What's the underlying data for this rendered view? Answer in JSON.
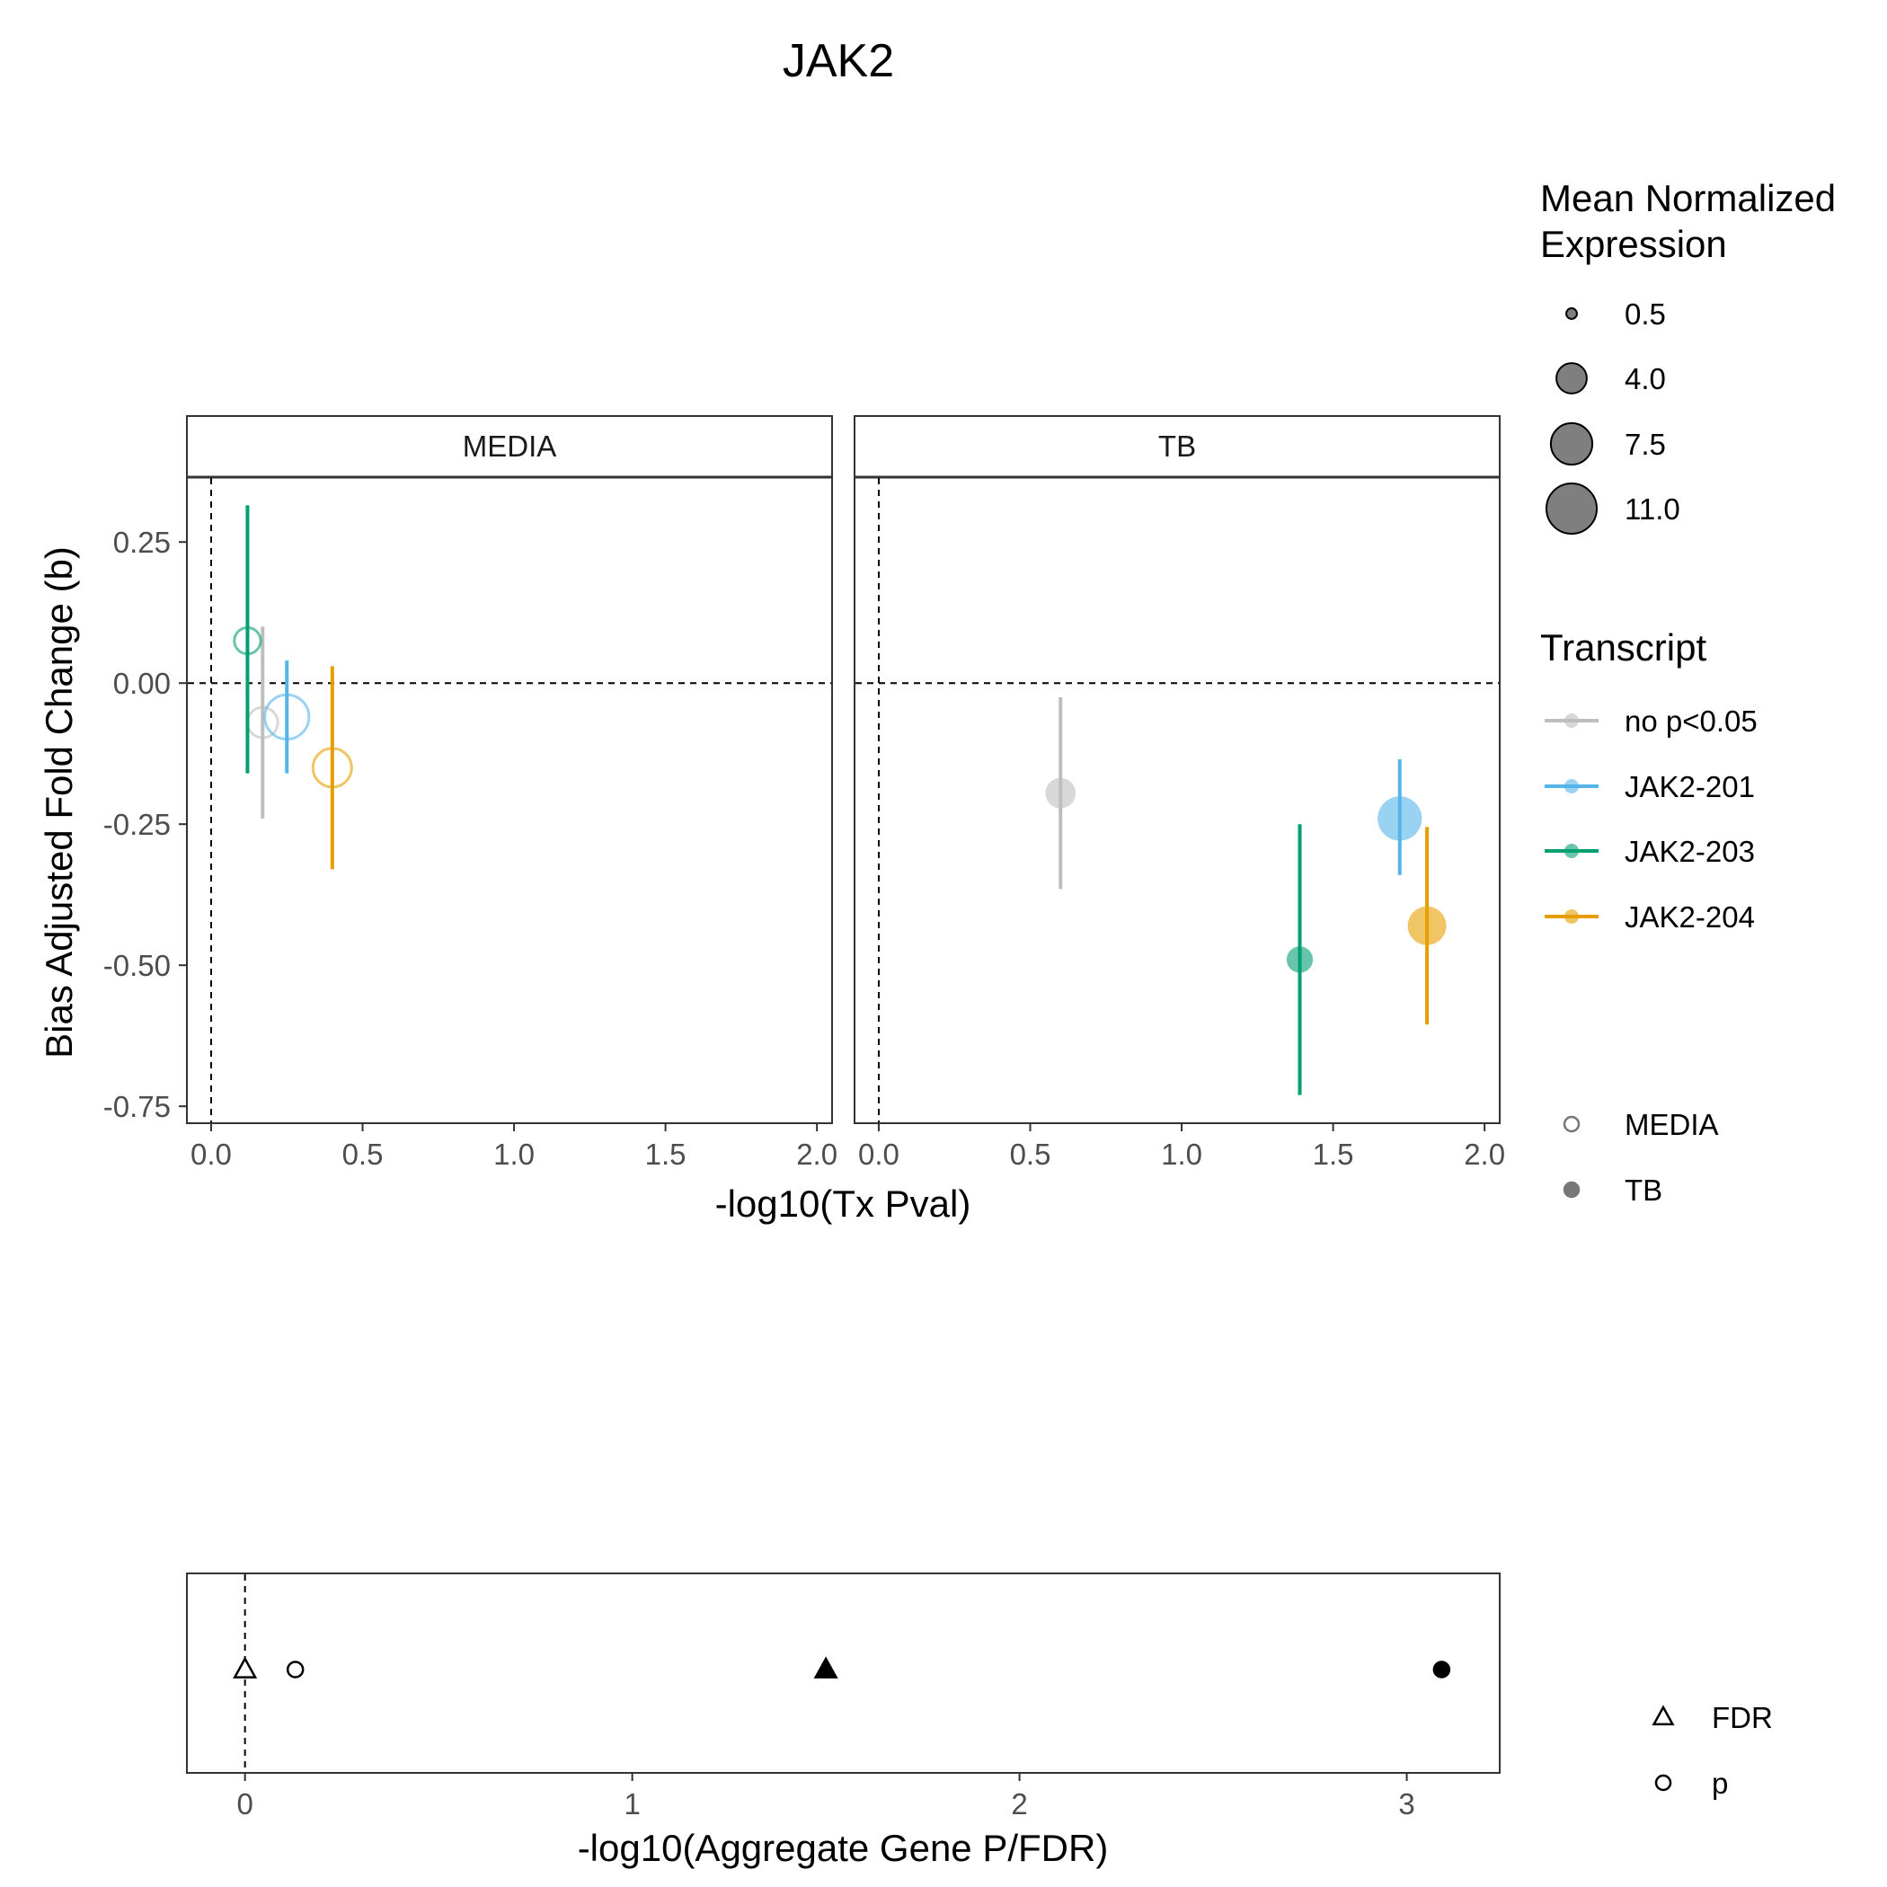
{
  "chart_data": [
    {
      "type": "scatter",
      "title": "JAK2",
      "xlabel": "-log10(Tx Pval)",
      "ylabel": "Bias Adjusted Fold Change (b)",
      "xlim": [
        -0.08,
        2.05
      ],
      "ylim": [
        -0.78,
        0.365
      ],
      "xticks": [
        0,
        0.5,
        1,
        1.5,
        2
      ],
      "xtick_labels": [
        "0.0",
        "0.5",
        "1.0",
        "1.5",
        "2.0"
      ],
      "yticks": [
        0.25,
        0,
        -0.25,
        -0.5,
        -0.75
      ],
      "ytick_labels": [
        "0.25",
        "0.00",
        "-0.25",
        "-0.50",
        "-0.75"
      ],
      "reference_lines": {
        "x": 0,
        "y": 0
      },
      "facets": [
        "MEDIA",
        "TB"
      ],
      "series": [
        {
          "name": "no p<0.05",
          "color": "#BEBEBE",
          "points": [
            {
              "facet": "MEDIA",
              "x": 0.17,
              "y": -0.07,
              "ymin": -0.24,
              "ymax": 0.1,
              "expr": 4.0
            },
            {
              "facet": "TB",
              "x": 0.6,
              "y": -0.195,
              "ymin": -0.365,
              "ymax": -0.025,
              "expr": 4.0
            }
          ]
        },
        {
          "name": "JAK2-201",
          "color": "#56B4E9",
          "points": [
            {
              "facet": "MEDIA",
              "x": 0.25,
              "y": -0.06,
              "ymin": -0.16,
              "ymax": 0.04,
              "expr": 8.5
            },
            {
              "facet": "TB",
              "x": 1.72,
              "y": -0.24,
              "ymin": -0.34,
              "ymax": -0.135,
              "expr": 8.5
            }
          ]
        },
        {
          "name": "JAK2-203",
          "color": "#009E73",
          "points": [
            {
              "facet": "MEDIA",
              "x": 0.12,
              "y": 0.075,
              "ymin": -0.16,
              "ymax": 0.315,
              "expr": 3.0
            },
            {
              "facet": "TB",
              "x": 1.39,
              "y": -0.49,
              "ymin": -0.73,
              "ymax": -0.25,
              "expr": 3.0
            }
          ]
        },
        {
          "name": "JAK2-204",
          "color": "#E69F00",
          "points": [
            {
              "facet": "MEDIA",
              "x": 0.4,
              "y": -0.15,
              "ymin": -0.33,
              "ymax": 0.03,
              "expr": 6.5
            },
            {
              "facet": "TB",
              "x": 1.81,
              "y": -0.43,
              "ymin": -0.605,
              "ymax": -0.255,
              "expr": 6.5
            }
          ]
        }
      ],
      "size_legend": {
        "title_line1": "Mean Normalized",
        "title_line2": "Expression",
        "values": [
          0.5,
          4.0,
          7.5,
          11.0
        ],
        "labels": [
          "0.5",
          "4.0",
          "7.5",
          "11.0"
        ]
      },
      "transcript_legend": {
        "title": "Transcript",
        "labels": [
          "no p<0.05",
          "JAK2-201",
          "JAK2-203",
          "JAK2-204"
        ]
      },
      "condition_legend": {
        "labels": [
          "MEDIA",
          "TB"
        ],
        "fill": [
          "open",
          "filled"
        ]
      }
    },
    {
      "type": "scatter",
      "xlabel": "-log10(Aggregate Gene P/FDR)",
      "ylabel": "",
      "xlim": [
        -0.15,
        3.24
      ],
      "xticks": [
        0,
        1,
        2,
        3
      ],
      "xtick_labels": [
        "0",
        "1",
        "2",
        "3"
      ],
      "reference_lines": {
        "x": 0
      },
      "points": [
        {
          "metric": "FDR",
          "condition": "MEDIA",
          "x": 0.0
        },
        {
          "metric": "p",
          "condition": "MEDIA",
          "x": 0.13
        },
        {
          "metric": "FDR",
          "condition": "TB",
          "x": 1.5
        },
        {
          "metric": "p",
          "condition": "TB",
          "x": 3.09
        }
      ],
      "shape_legend": {
        "labels": [
          "FDR",
          "p"
        ],
        "shapes": [
          "triangle",
          "circle"
        ]
      }
    }
  ]
}
